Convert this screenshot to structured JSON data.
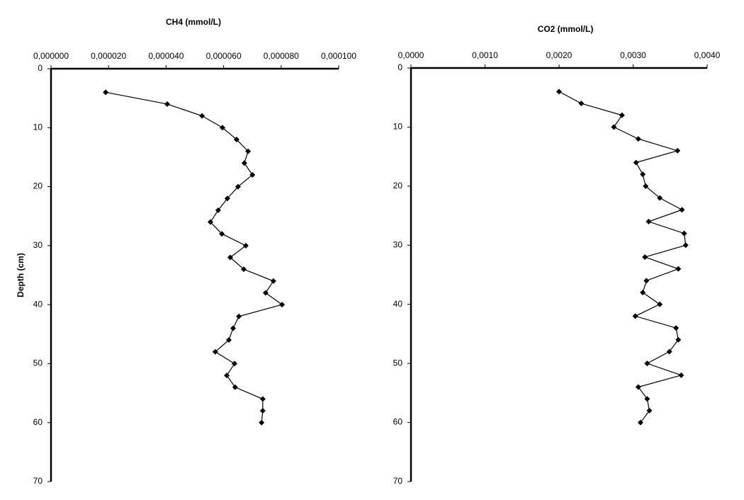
{
  "chart_data": [
    {
      "type": "line",
      "title": "CH4 (mmol/L)",
      "y_label": "Depth (cm)",
      "color": "#000000",
      "marker": "diamond",
      "y_reversed": true,
      "xlim": [
        0,
        0.0001
      ],
      "xticks": [
        {
          "value": 0,
          "label": "0,000000"
        },
        {
          "value": 2e-05,
          "label": "0,000020"
        },
        {
          "value": 4e-05,
          "label": "0,000040"
        },
        {
          "value": 6e-05,
          "label": "0,000060"
        },
        {
          "value": 8e-05,
          "label": "0,000080"
        },
        {
          "value": 0.0001,
          "label": "0,000100"
        }
      ],
      "ylim": [
        0,
        70
      ],
      "yticks": [
        0,
        10,
        20,
        30,
        40,
        50,
        60,
        70
      ],
      "depths": [
        4,
        6,
        8,
        10,
        12,
        14,
        16,
        18,
        20,
        22,
        24,
        26,
        28,
        30,
        32,
        34,
        36,
        38,
        40,
        42,
        44,
        46,
        48,
        50,
        52,
        54,
        56,
        58,
        60
      ],
      "values": [
        1.9e-05,
        4.04e-05,
        5.25e-05,
        5.96e-05,
        6.45e-05,
        6.85e-05,
        6.72e-05,
        7e-05,
        6.5e-05,
        6.13e-05,
        5.81e-05,
        5.54e-05,
        5.94e-05,
        6.77e-05,
        6.23e-05,
        6.7e-05,
        7.73e-05,
        7.46e-05,
        8.03e-05,
        6.53e-05,
        6.33e-05,
        6.18e-05,
        5.71e-05,
        6.38e-05,
        6.11e-05,
        6.4e-05,
        7.36e-05,
        7.36e-05,
        7.32e-05
      ]
    },
    {
      "type": "line",
      "title": "CO2 (mmol/L)",
      "color": "#000000",
      "marker": "diamond",
      "y_reversed": true,
      "xlim": [
        0,
        0.004
      ],
      "xticks": [
        {
          "value": 0,
          "label": "0,0000"
        },
        {
          "value": 0.001,
          "label": "0,0010"
        },
        {
          "value": 0.002,
          "label": "0,0020"
        },
        {
          "value": 0.003,
          "label": "0,0030"
        },
        {
          "value": 0.004,
          "label": "0,0040"
        }
      ],
      "ylim": [
        0,
        70
      ],
      "yticks": [
        0,
        10,
        20,
        30,
        40,
        50,
        60,
        70
      ],
      "depths": [
        4,
        6,
        8,
        10,
        12,
        14,
        16,
        18,
        20,
        22,
        24,
        26,
        28,
        30,
        32,
        34,
        36,
        38,
        40,
        42,
        44,
        46,
        48,
        50,
        52,
        54,
        56,
        58,
        60
      ],
      "values": [
        0.002,
        0.0023,
        0.00285,
        0.00274,
        0.00307,
        0.0036,
        0.00304,
        0.00313,
        0.00317,
        0.00336,
        0.00366,
        0.00321,
        0.00369,
        0.00371,
        0.00316,
        0.00361,
        0.00318,
        0.00313,
        0.00336,
        0.00303,
        0.00358,
        0.00361,
        0.00349,
        0.00319,
        0.00365,
        0.00307,
        0.00319,
        0.00322,
        0.0031
      ]
    }
  ]
}
